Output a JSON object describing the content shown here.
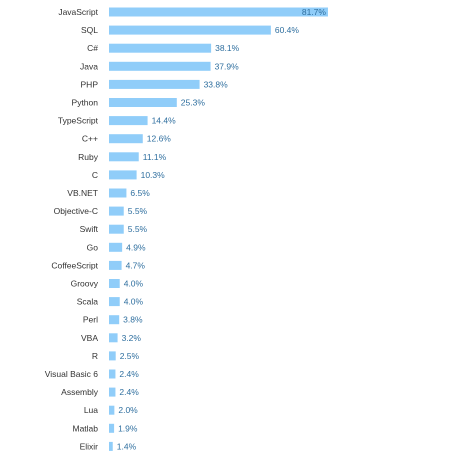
{
  "chart_data": {
    "type": "bar",
    "orientation": "horizontal",
    "title": "",
    "xlabel": "",
    "ylabel": "",
    "grid": false,
    "legend": "none",
    "value_suffix": "%",
    "bar_color": "#90cdf9",
    "label_color": "#2f6f9f",
    "category_color": "#333333",
    "categories": [
      "JavaScript",
      "SQL",
      "C#",
      "Java",
      "PHP",
      "Python",
      "TypeScript",
      "C++",
      "Ruby",
      "C",
      "VB.NET",
      "Objective-C",
      "Swift",
      "Go",
      "CoffeeScript",
      "Groovy",
      "Scala",
      "Perl",
      "VBA",
      "R",
      "Visual Basic 6",
      "Assembly",
      "Lua",
      "Matlab",
      "Elixir"
    ],
    "values": [
      81.7,
      60.4,
      38.1,
      37.9,
      33.8,
      25.3,
      14.4,
      12.6,
      11.1,
      10.3,
      6.5,
      5.5,
      5.5,
      4.9,
      4.7,
      4.0,
      4.0,
      3.8,
      3.2,
      2.5,
      2.4,
      2.4,
      2.0,
      1.9,
      1.4
    ],
    "xlim": [
      0,
      100
    ]
  }
}
